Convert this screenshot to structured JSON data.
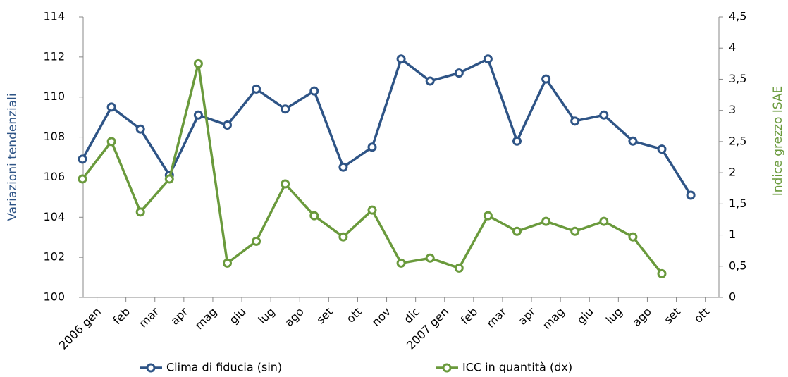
{
  "chart_data": {
    "type": "line",
    "ylabel": "Variazioni tendenziali",
    "y2label": "Indice grezzo ISAE",
    "categories": [
      "2006 gen",
      "feb",
      "mar",
      "apr",
      "mag",
      "giu",
      "lug",
      "ago",
      "set",
      "ott",
      "nov",
      "dic",
      "2007 gen",
      "feb",
      "mar",
      "apr",
      "mag",
      "giu",
      "lug",
      "ago",
      "set",
      "ott"
    ],
    "series": [
      {
        "name": "Clima di fiducia (sin)",
        "color": "#2e5486",
        "axis": "y",
        "values": [
          106.9,
          109.5,
          108.4,
          106.1,
          109.1,
          108.6,
          110.4,
          109.4,
          110.3,
          106.5,
          107.5,
          111.9,
          110.8,
          111.2,
          111.9,
          107.8,
          110.9,
          108.8,
          109.1,
          107.8,
          107.4,
          105.1
        ]
      },
      {
        "name": "ICC in quantità (dx)",
        "color": "#6a9a3c",
        "axis": "y2",
        "values": [
          1.9,
          2.5,
          1.37,
          1.9,
          3.75,
          0.55,
          0.9,
          1.82,
          1.31,
          0.97,
          1.4,
          0.55,
          0.63,
          0.47,
          1.31,
          1.06,
          1.22,
          1.06,
          1.22,
          0.97,
          0.38,
          null
        ]
      }
    ],
    "ylim": [
      100,
      114
    ],
    "yticks": [
      100,
      102,
      104,
      106,
      108,
      110,
      112,
      114
    ],
    "y2lim": [
      0,
      4.5
    ],
    "y2ticks": [
      0,
      {
        "value": 0.5,
        "label": "0,5"
      },
      1,
      {
        "value": 1.5,
        "label": "1,5"
      },
      2,
      {
        "value": 2.5,
        "label": "2,5"
      },
      3,
      {
        "value": 3.5,
        "label": "3,5"
      },
      4,
      {
        "value": 4.5,
        "label": "4,5"
      }
    ],
    "legend": "bottom"
  }
}
